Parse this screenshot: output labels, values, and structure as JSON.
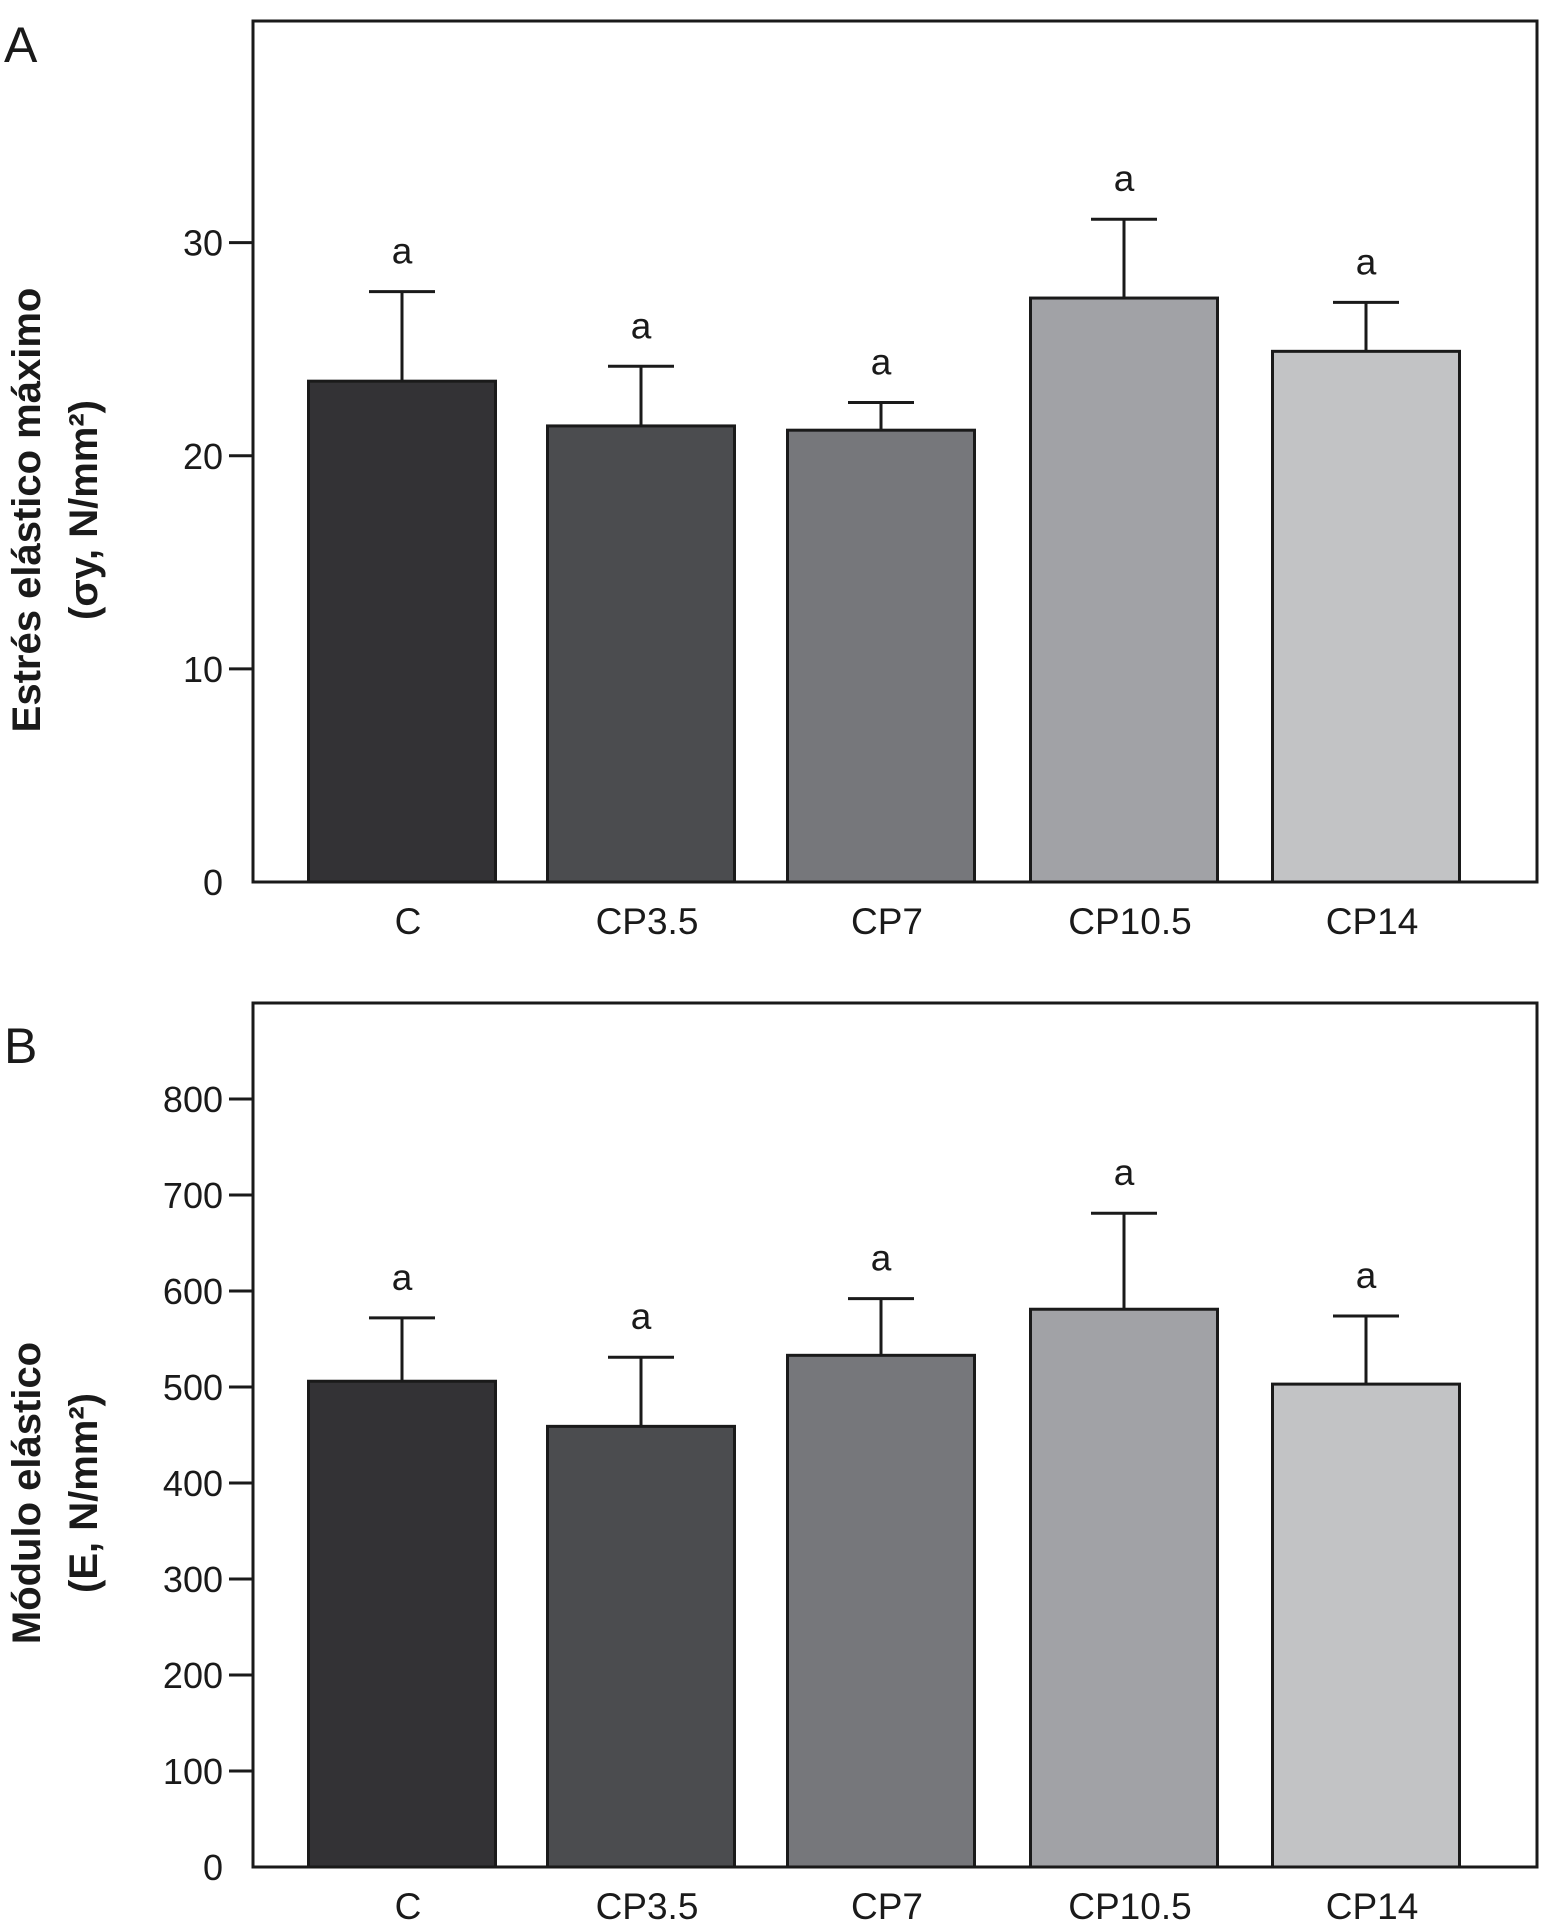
{
  "chart_data": [
    {
      "type": "bar",
      "panel": "A",
      "title": "",
      "ylabel": [
        "Estrés elástico máximo",
        "(σy, N/mm²)"
      ],
      "xlabel": "",
      "categories": [
        "C",
        "CP3.5",
        "CP7",
        "CP10.5",
        "CP14"
      ],
      "values": [
        23.5,
        21.4,
        21.2,
        27.4,
        24.9
      ],
      "errors": [
        4.2,
        2.8,
        1.3,
        3.7,
        2.3
      ],
      "significance": [
        "a",
        "a",
        "a",
        "a",
        "a"
      ],
      "colors": [
        "#333235",
        "#4b4c4f",
        "#76777b",
        "#a1a2a6",
        "#c2c3c5"
      ],
      "ylim": [
        0,
        40.4
      ],
      "yticks": [
        0,
        10,
        20,
        30
      ]
    },
    {
      "type": "bar",
      "panel": "B",
      "title": "",
      "ylabel": [
        "Módulo elástico",
        "(E, N/mm²)"
      ],
      "xlabel": "",
      "categories": [
        "C",
        "CP3.5",
        "CP7",
        "CP10.5",
        "CP14"
      ],
      "values": [
        506,
        459,
        533,
        581,
        503
      ],
      "errors": [
        66,
        72,
        59,
        100,
        71
      ],
      "significance": [
        "a",
        "a",
        "a",
        "a",
        "a"
      ],
      "colors": [
        "#333235",
        "#4b4c4f",
        "#76777b",
        "#a1a2a6",
        "#c2c3c5"
      ],
      "ylim": [
        0,
        900
      ],
      "yticks": [
        0,
        100,
        200,
        300,
        400,
        500,
        600,
        700,
        800
      ]
    }
  ]
}
